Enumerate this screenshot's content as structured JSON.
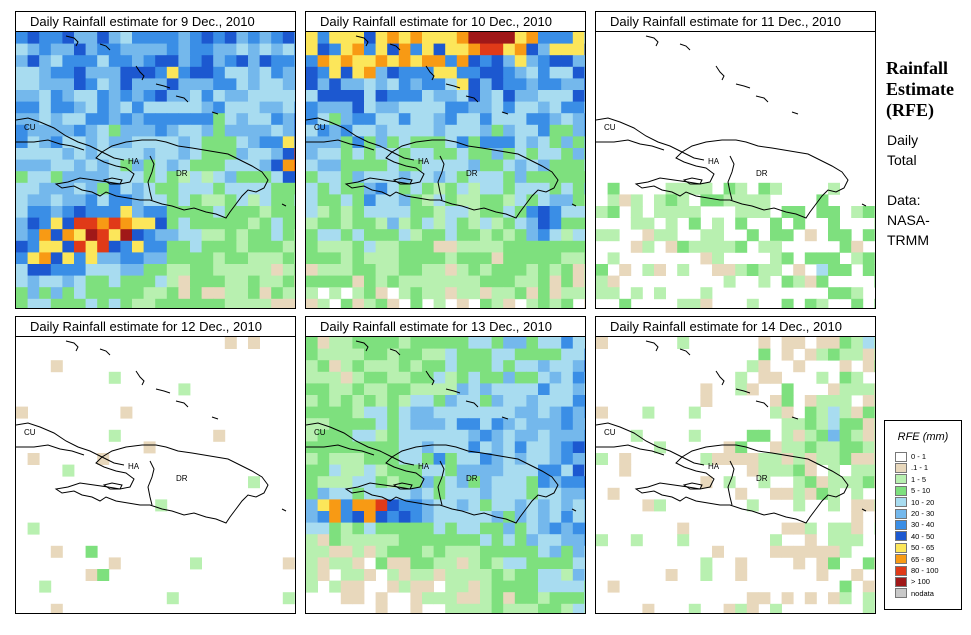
{
  "panels": [
    {
      "title": "Daily Rainfall estimate for  9 Dec., 2010"
    },
    {
      "title": "Daily Rainfall estimate for  10 Dec., 2010"
    },
    {
      "title": "Daily Rainfall estimate for  11 Dec., 2010"
    },
    {
      "title": "Daily Rainfall estimate for  12 Dec., 2010"
    },
    {
      "title": "Daily Rainfall estimate for  13 Dec., 2010"
    },
    {
      "title": "Daily Rainfall estimate for  14 Dec., 2010"
    }
  ],
  "map_labels": {
    "cuba": "CU",
    "haiti": "HA",
    "dominican_republic": "DR"
  },
  "side": {
    "title_line1": "Rainfall",
    "title_line2": "Estimate",
    "title_line3": "(RFE)",
    "period_line1": "Daily",
    "period_line2": "Total",
    "data_line1": "Data:",
    "data_line2": "NASA-",
    "data_line3": "TRMM"
  },
  "legend": {
    "title": "RFE (mm)",
    "items": [
      {
        "label": "0 - 1",
        "color": "#ffffff"
      },
      {
        "label": ".1 - 1",
        "color": "#e8d8bc"
      },
      {
        "label": "1 - 5",
        "color": "#b8f0b0"
      },
      {
        "label": "5 - 10",
        "color": "#7ee07e"
      },
      {
        "label": "10 - 20",
        "color": "#a8dcf0"
      },
      {
        "label": "20 - 30",
        "color": "#74b8ec"
      },
      {
        "label": "30 - 40",
        "color": "#3a8ee6"
      },
      {
        "label": "40 - 50",
        "color": "#1c58d0"
      },
      {
        "label": "50 - 65",
        "color": "#fce65a"
      },
      {
        "label": "65 - 80",
        "color": "#f89a14"
      },
      {
        "label": "80 - 100",
        "color": "#e03a18"
      },
      {
        "label": "> 100",
        "color": "#a01818"
      },
      {
        "label": "nodata",
        "color": "#c8c8c8"
      }
    ]
  }
}
